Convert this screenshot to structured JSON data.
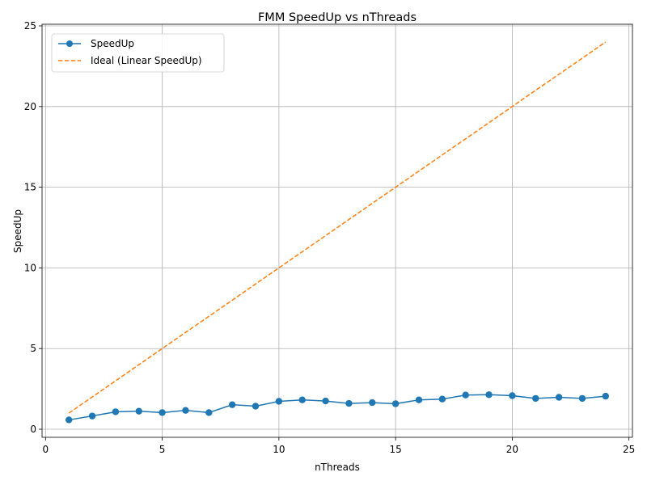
{
  "chart_data": {
    "type": "line",
    "title": "FMM SpeedUp vs nThreads",
    "xlabel": "nThreads",
    "ylabel": "SpeedUp",
    "xlim": [
      -0.15,
      25.15
    ],
    "ylim": [
      -0.5,
      25.1
    ],
    "xticks": [
      0,
      5,
      10,
      15,
      20,
      25
    ],
    "yticks": [
      0,
      5,
      10,
      15,
      20,
      25
    ],
    "grid": true,
    "legend_position": "top-left",
    "x": [
      1,
      2,
      3,
      4,
      5,
      6,
      7,
      8,
      9,
      10,
      11,
      12,
      13,
      14,
      15,
      16,
      17,
      18,
      19,
      20,
      21,
      22,
      23,
      24
    ],
    "series": [
      {
        "name": "SpeedUp",
        "color": "#1f77b4",
        "style": "solid",
        "marker": "circle",
        "values": [
          0.58,
          0.82,
          1.08,
          1.12,
          1.03,
          1.17,
          1.03,
          1.52,
          1.43,
          1.73,
          1.82,
          1.75,
          1.6,
          1.65,
          1.58,
          1.82,
          1.87,
          2.12,
          2.14,
          2.08,
          1.91,
          1.98,
          1.91,
          2.05
        ]
      },
      {
        "name": "Ideal (Linear SpeedUp)",
        "color": "#ff7f0e",
        "style": "dashed",
        "marker": "none",
        "values": [
          1,
          2,
          3,
          4,
          5,
          6,
          7,
          8,
          9,
          10,
          11,
          12,
          13,
          14,
          15,
          16,
          17,
          18,
          19,
          20,
          21,
          22,
          23,
          24
        ]
      }
    ]
  }
}
